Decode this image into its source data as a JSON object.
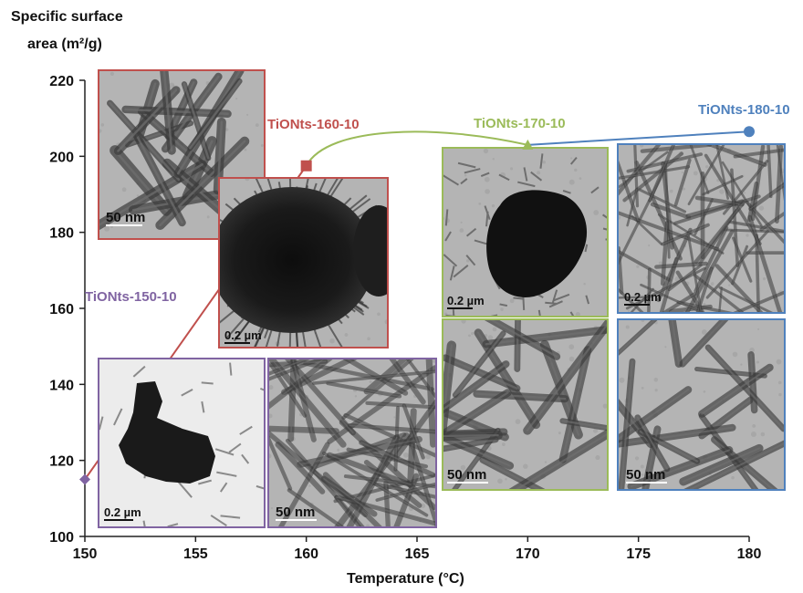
{
  "chart_data": {
    "type": "line",
    "ylabel_lines": [
      "Specific surface",
      "area (m²/g)"
    ],
    "xlabel": "Temperature (°C)",
    "xlim": [
      150,
      180
    ],
    "ylim": [
      100,
      220
    ],
    "xticks": [
      150,
      155,
      160,
      165,
      170,
      175,
      180
    ],
    "yticks": [
      100,
      120,
      140,
      160,
      180,
      200,
      220
    ],
    "grid": false,
    "series": [
      {
        "x": [
          150,
          160,
          170,
          180
        ],
        "y": [
          115,
          197.5,
          203,
          206.5
        ],
        "points": [
          {
            "label": "TiONts-150-10",
            "color": "#8064a2",
            "marker": "diamond"
          },
          {
            "label": "TiONts-160-10",
            "color": "#c0504d",
            "marker": "square"
          },
          {
            "label": "TiONts-170-10",
            "color": "#9bbb59",
            "marker": "triangle"
          },
          {
            "label": "TiONts-180-10",
            "color": "#4f81bd",
            "marker": "circle"
          }
        ]
      }
    ],
    "segment_colors": [
      "#c0504d",
      "#9bbb59",
      "#4f81bd"
    ],
    "micrographs": [
      {
        "name": "tem-160-nanotubes",
        "scale_bar": "50 nm",
        "color": "#c0504d"
      },
      {
        "name": "tem-160-aggregate",
        "scale_bar": "0.2 µm",
        "color": "#c0504d"
      },
      {
        "name": "tem-150-aggregate",
        "scale_bar": "0.2 µm",
        "color": "#8064a2"
      },
      {
        "name": "tem-150-nanotubes",
        "scale_bar": "50 nm",
        "color": "#8064a2"
      },
      {
        "name": "tem-170-aggregate",
        "scale_bar": "0.2 µm",
        "color": "#9bbb59"
      },
      {
        "name": "tem-170-nanotubes",
        "scale_bar": "50 nm",
        "color": "#9bbb59"
      },
      {
        "name": "tem-180-network",
        "scale_bar": "0.2 µm",
        "color": "#4f81bd"
      },
      {
        "name": "tem-180-nanotubes",
        "scale_bar": "50 nm",
        "color": "#4f81bd"
      }
    ]
  }
}
